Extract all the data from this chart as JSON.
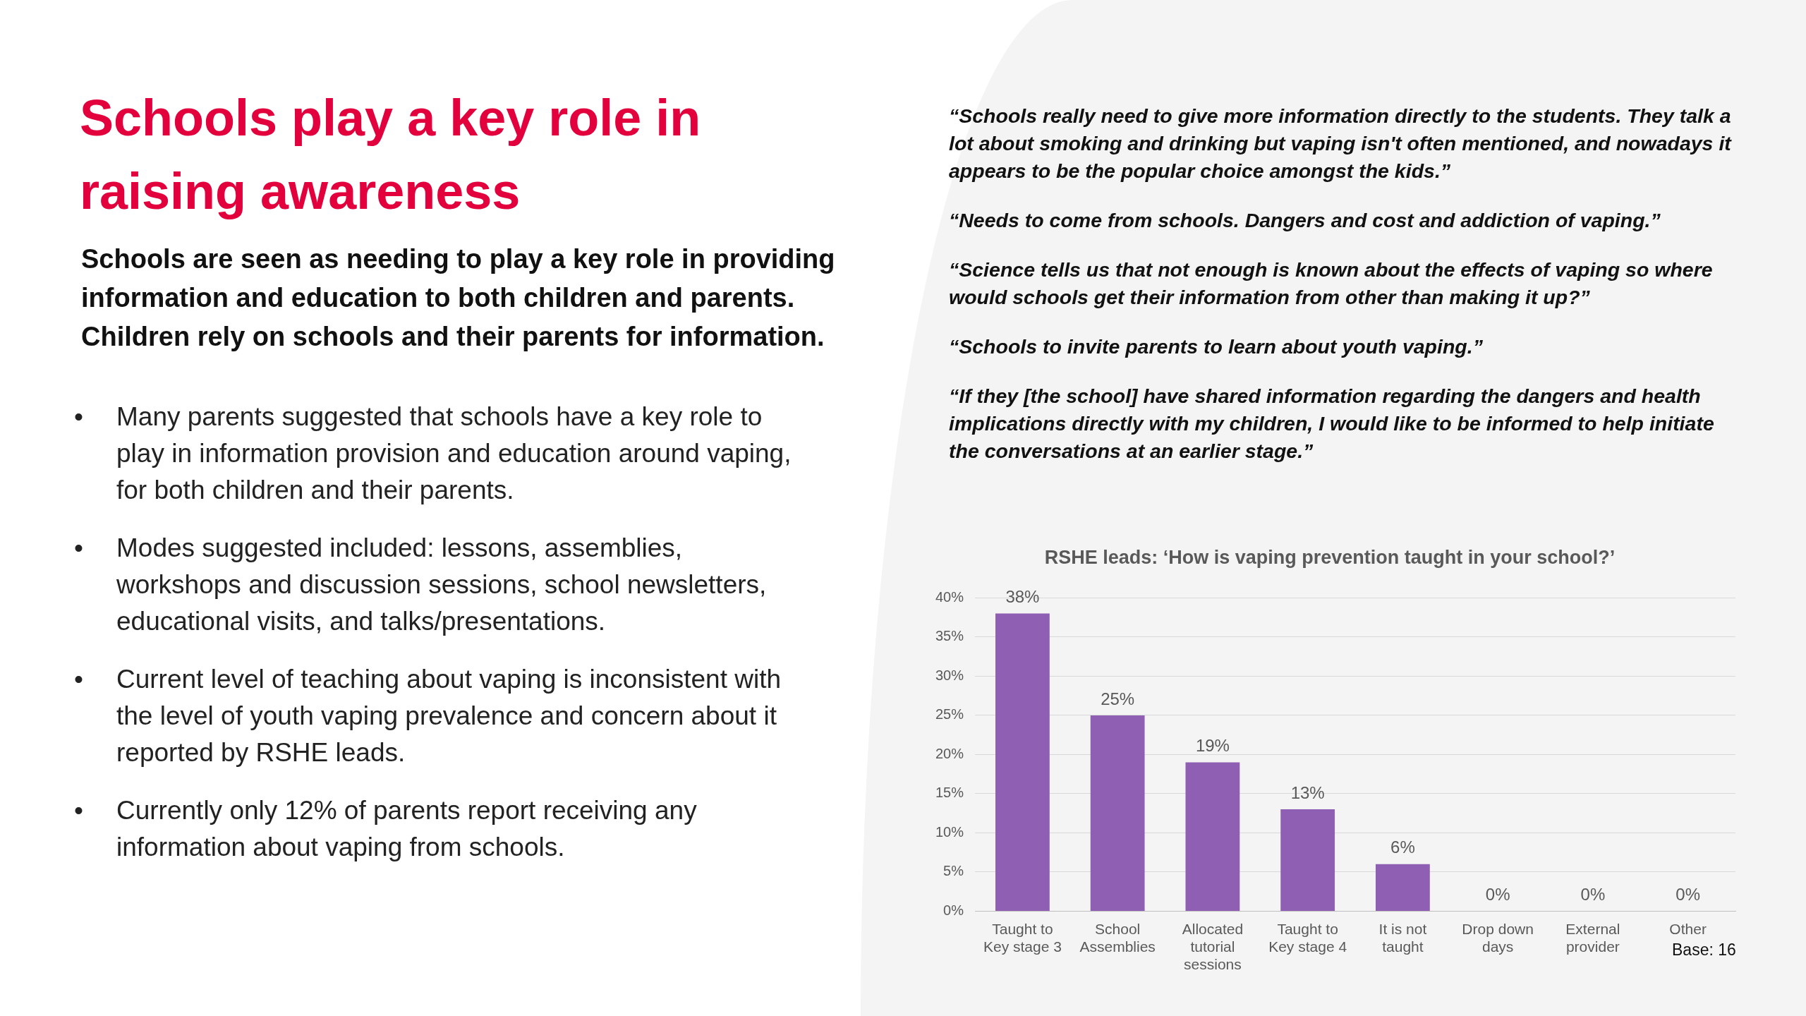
{
  "chart_data": {
    "type": "bar",
    "title": "RSHE leads: ‘How is vaping prevention taught in your school?’",
    "subtitle": "Schools are seen as needing to play a key role in providing information and education to both children and parents. Children rely on schools and their parents for information.",
    "categories": [
      "Taught to Key stage 3",
      "School Assemblies",
      "Allocated tutorial sessions",
      "Taught to Key stage 4",
      "It is not taught",
      "Drop down days",
      "External provider",
      "Other"
    ],
    "values": [
      38,
      25,
      19,
      13,
      6,
      0,
      0,
      0
    ],
    "value_labels": [
      "38%",
      "25%",
      "19%",
      "13%",
      "6%",
      "0%",
      "0%",
      "0%"
    ],
    "color": "#8e5fb3",
    "ylim": [
      0,
      40
    ],
    "yticks": [
      {
        "value": 0,
        "label": "0%"
      },
      {
        "value": 5,
        "label": "5%"
      },
      {
        "value": 10,
        "label": "10%"
      },
      {
        "value": 15,
        "label": "15%"
      },
      {
        "value": 20,
        "label": "20%"
      },
      {
        "value": 25,
        "label": "25%"
      },
      {
        "value": 30,
        "label": "30%"
      },
      {
        "value": 35,
        "label": "35%"
      },
      {
        "value": 40,
        "label": "40%"
      }
    ],
    "grid": "y",
    "annotations": [
      "Schools play a key role in raising awareness",
      "• Many parents suggested that schools have a key role to play in information provision and education around vaping, for both children and their parents.",
      "• Modes suggested included: lessons, assemblies, workshops and discussion sessions, school newsletters, educational visits, and talks/presentations.",
      "• Current level of teaching about vaping is inconsistent with the level of youth vaping prevalence and concern about it reported by RSHE leads.",
      "• Currently only 12% of parents report receiving any information about vaping from schools.",
      "“Schools really need to give more information directly to the students. They talk a lot about smoking and drinking but vaping isn't often mentioned, and nowadays it appears to be the popular choice amongst the kids.”",
      "“Needs to come from schools. Dangers and cost and addiction of vaping.”",
      "“Science tells us that not enough is known about the effects of vaping so where would schools get their information from other than making it up?”",
      "“Schools to invite parents to learn about youth vaping.”",
      "“If they [the school] have shared information regarding the dangers and health implications directly with my children, I would like to be informed to help initiate the conversations at an earlier stage.”",
      "Base: 16"
    ]
  }
}
